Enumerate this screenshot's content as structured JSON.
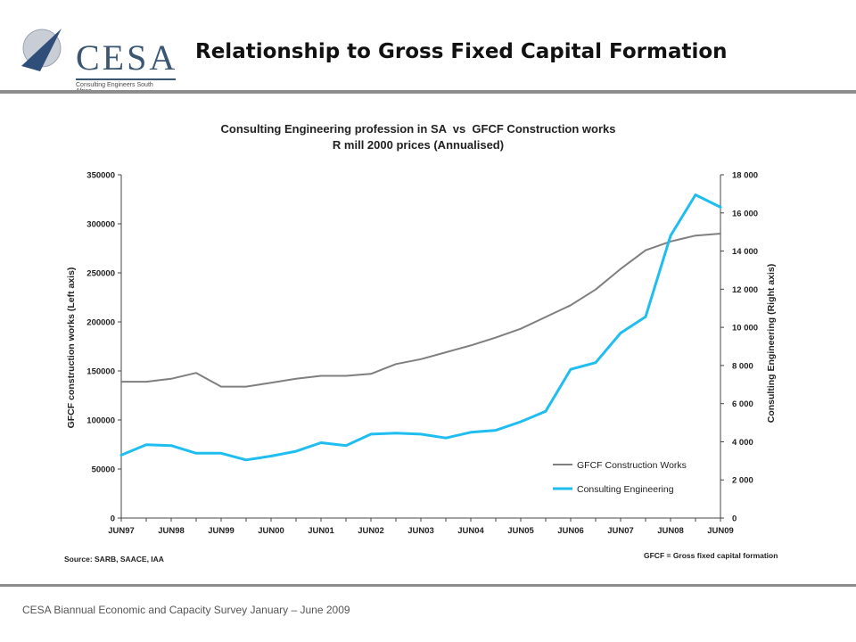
{
  "header": {
    "title": "Relationship to Gross Fixed Capital Formation",
    "logo": {
      "text": "CESA",
      "tagline": "Consulting Engineers South Africa",
      "icon": "cesa-arrow-logo"
    }
  },
  "footer": {
    "text": "CESA Biannual Economic and Capacity Survey January – June 2009"
  },
  "colors": {
    "gfcf": "#7f7f7f",
    "consulting": "#1fbdf0",
    "rule": "#8c8c8c"
  },
  "chart_data": {
    "type": "line",
    "title": "Consulting Engineering profession in SA  vs  GFCF Construction works",
    "subtitle": "R mill 2000 prices (Annualised)",
    "ylabel_left": "GFCF construction works (Left axis)",
    "ylabel_right": "Consulting Engineering (Right axis)",
    "ylim_left": [
      0,
      350000
    ],
    "ylim_right": [
      0,
      18000
    ],
    "yticks_left": [
      "0",
      "50000",
      "100000",
      "150000",
      "200000",
      "250000",
      "300000",
      "350000"
    ],
    "yticks_right": [
      "0",
      "2 000",
      "4 000",
      "6 000",
      "8 000",
      "10 000",
      "12 000",
      "14 000",
      "16 000",
      "18 000"
    ],
    "xtick_labels": [
      "JUN97",
      "JUN98",
      "JUN99",
      "JUN00",
      "JUN01",
      "JUN02",
      "JUN03",
      "JUN04",
      "JUN05",
      "JUN06",
      "JUN07",
      "JUN08",
      "JUN09"
    ],
    "x": [
      "JUN97",
      "DEC97",
      "JUN98",
      "DEC98",
      "JUN99",
      "DEC99",
      "JUN00",
      "DEC00",
      "JUN01",
      "DEC01",
      "JUN02",
      "DEC02",
      "JUN03",
      "DEC03",
      "JUN04",
      "DEC04",
      "JUN05",
      "DEC05",
      "JUN06",
      "DEC06",
      "JUN07",
      "DEC07",
      "JUN08",
      "DEC08",
      "JUN09"
    ],
    "series": [
      {
        "name": "GFCF Construction Works",
        "axis": "left",
        "values": [
          139000,
          139000,
          142000,
          148000,
          134000,
          134000,
          138000,
          142000,
          145000,
          145000,
          147000,
          157000,
          162000,
          169000,
          176000,
          184000,
          193000,
          205000,
          217000,
          233000,
          254000,
          273000,
          282000,
          288000,
          290000
        ]
      },
      {
        "name": "Consulting Engineering",
        "axis": "right",
        "values": [
          3300,
          3850,
          3800,
          3400,
          3400,
          3050,
          3250,
          3500,
          3950,
          3800,
          4400,
          4450,
          4400,
          4200,
          4500,
          4600,
          5050,
          5600,
          7800,
          8150,
          9700,
          10550,
          14800,
          16950,
          16300
        ]
      }
    ],
    "legend_position": "bottom-right",
    "grid": false,
    "source": "Source: SARB, SAACE, IAA",
    "note": "GFCF = Gross fixed capital formation"
  }
}
